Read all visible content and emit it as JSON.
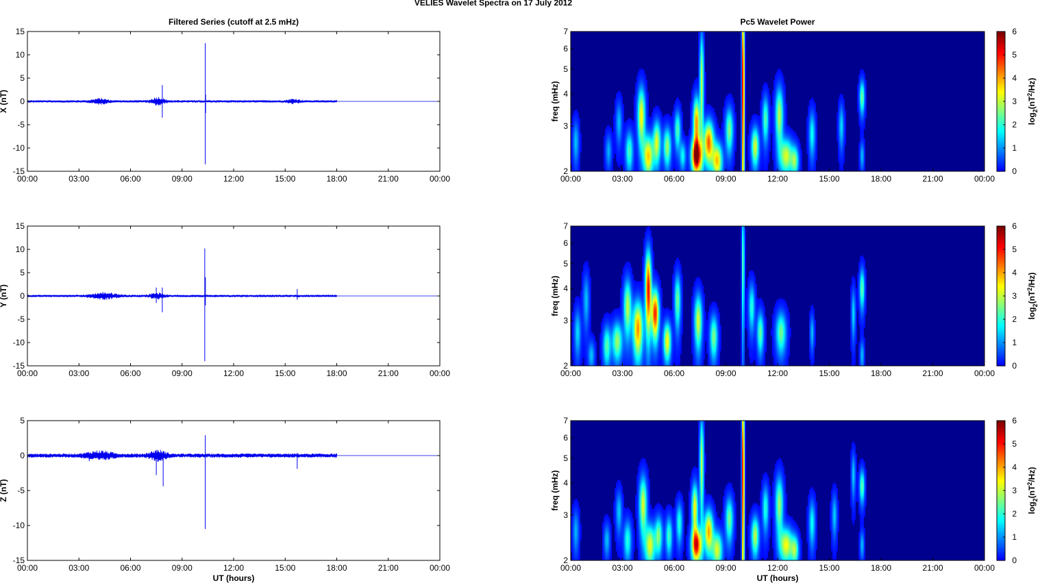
{
  "figure": {
    "title": "VELIES Wavelet Spectra on 17 July      2012"
  },
  "chart_data": [
    {
      "type": "line",
      "panel": "x-series",
      "title": "Filtered Series (cutoff at 2.5 mHz)",
      "xlabel": "",
      "ylabel": "X (nT)",
      "xlim": [
        0,
        24
      ],
      "ylim": [
        -15,
        15
      ],
      "xtick_labels": [
        "00:00",
        "03:00",
        "06:00",
        "09:00",
        "12:00",
        "15:00",
        "18:00",
        "21:00",
        "00:00"
      ],
      "yticks": [
        -15,
        -10,
        -5,
        0,
        5,
        10,
        15
      ],
      "line_color": "#0000ee",
      "data_end_hour": 18.0,
      "noise_amplitude": 0.25,
      "bursts": [
        {
          "t": 4.2,
          "amp": 0.5,
          "w": 0.5
        },
        {
          "t": 7.6,
          "amp": 0.8,
          "w": 0.4
        },
        {
          "t": 15.5,
          "amp": 0.4,
          "w": 0.4
        }
      ],
      "spikes": [
        {
          "t": 7.85,
          "min": -3.5,
          "max": 3.5
        },
        {
          "t": 10.35,
          "min": -13.5,
          "max": 12.5
        },
        {
          "t": 10.37,
          "min": -2.5,
          "max": 1.5
        }
      ]
    },
    {
      "type": "line",
      "panel": "y-series",
      "title": "",
      "xlabel": "",
      "ylabel": "Y (nT)",
      "xlim": [
        0,
        24
      ],
      "ylim": [
        -15,
        15
      ],
      "xtick_labels": [
        "00:00",
        "03:00",
        "06:00",
        "09:00",
        "12:00",
        "15:00",
        "18:00",
        "21:00",
        "00:00"
      ],
      "yticks": [
        -15,
        -10,
        -5,
        0,
        5,
        10,
        15
      ],
      "line_color": "#0000ee",
      "data_end_hour": 18.0,
      "noise_amplitude": 0.25,
      "bursts": [
        {
          "t": 4.5,
          "amp": 0.6,
          "w": 0.8
        },
        {
          "t": 7.5,
          "amp": 0.6,
          "w": 0.4
        }
      ],
      "spikes": [
        {
          "t": 7.5,
          "min": -1.5,
          "max": 1.8
        },
        {
          "t": 7.85,
          "min": -3.5,
          "max": 1.8
        },
        {
          "t": 10.32,
          "min": -14,
          "max": 10.2
        },
        {
          "t": 10.36,
          "min": -2.0,
          "max": 4.0
        },
        {
          "t": 15.7,
          "min": -0.8,
          "max": 1.5
        }
      ]
    },
    {
      "type": "line",
      "panel": "z-series",
      "title": "",
      "xlabel": "UT (hours)",
      "ylabel": "Z (nT)",
      "xlim": [
        0,
        24
      ],
      "ylim": [
        -15,
        5
      ],
      "xtick_labels": [
        "00:00",
        "03:00",
        "06:00",
        "09:00",
        "12:00",
        "15:00",
        "18:00",
        "21:00",
        "00:00"
      ],
      "yticks": [
        -15,
        -10,
        -5,
        0,
        5
      ],
      "line_color": "#0000ee",
      "data_end_hour": 18.0,
      "noise_amplitude": 0.3,
      "bursts": [
        {
          "t": 4.2,
          "amp": 0.5,
          "w": 0.8
        },
        {
          "t": 7.6,
          "amp": 0.6,
          "w": 0.5
        }
      ],
      "spikes": [
        {
          "t": 3.6,
          "min": -0.8,
          "max": 0.3
        },
        {
          "t": 7.5,
          "min": -2.8,
          "max": 0.8
        },
        {
          "t": 7.9,
          "min": -4.4,
          "max": 0.6
        },
        {
          "t": 10.35,
          "min": -10.5,
          "max": 2.9
        },
        {
          "t": 15.7,
          "min": -1.9,
          "max": 0.4
        }
      ]
    },
    {
      "type": "heatmap",
      "panel": "x-wavelet",
      "title": "Pc5 Wavelet Power",
      "xlabel": "",
      "ylabel": "freq (mHz)",
      "colorbar_label": "log2(nT2/Hz)",
      "colorbar_ticks": [
        0,
        1,
        2,
        3,
        4,
        5,
        6
      ],
      "xlim": [
        0,
        24
      ],
      "ylim": [
        2,
        7
      ],
      "y_scale": "log",
      "yticks": [
        2,
        3,
        4,
        5,
        6,
        7
      ],
      "xtick_labels": [
        "00:00",
        "03:00",
        "06:00",
        "09:00",
        "12:00",
        "15:00",
        "18:00",
        "21:00",
        "00:00"
      ],
      "clim": [
        0,
        6
      ],
      "blobs": [
        {
          "t": 0.3,
          "f": 2.6,
          "p": 1.3,
          "wt": 0.12,
          "wf": 0.35
        },
        {
          "t": 2.2,
          "f": 2.4,
          "p": 1.2,
          "wt": 0.12,
          "wf": 0.25
        },
        {
          "t": 2.8,
          "f": 3.1,
          "p": 1.3,
          "wt": 0.12,
          "wf": 0.4
        },
        {
          "t": 3.4,
          "f": 2.4,
          "p": 2.2,
          "wt": 0.15,
          "wf": 0.3
        },
        {
          "t": 4.1,
          "f": 3.3,
          "p": 3.5,
          "wt": 0.15,
          "wf": 0.6
        },
        {
          "t": 4.5,
          "f": 2.3,
          "p": 3.8,
          "wt": 0.2,
          "wf": 0.3
        },
        {
          "t": 5.0,
          "f": 2.6,
          "p": 3.2,
          "wt": 0.15,
          "wf": 0.35
        },
        {
          "t": 5.6,
          "f": 2.5,
          "p": 2.8,
          "wt": 0.15,
          "wf": 0.3
        },
        {
          "t": 6.2,
          "f": 2.9,
          "p": 2.3,
          "wt": 0.12,
          "wf": 0.35
        },
        {
          "t": 6.5,
          "f": 2.3,
          "p": 1.8,
          "wt": 0.12,
          "wf": 0.2
        },
        {
          "t": 7.3,
          "f": 2.3,
          "p": 6.0,
          "wt": 0.2,
          "wf": 0.25
        },
        {
          "t": 7.3,
          "f": 3.1,
          "p": 4.2,
          "wt": 0.13,
          "wf": 0.5
        },
        {
          "t": 7.6,
          "f": 4.5,
          "p": 3.0,
          "wt": 0.08,
          "wf": 1.5
        },
        {
          "t": 8.0,
          "f": 2.6,
          "p": 4.5,
          "wt": 0.2,
          "wf": 0.35
        },
        {
          "t": 8.5,
          "f": 2.2,
          "p": 3.8,
          "wt": 0.2,
          "wf": 0.25
        },
        {
          "t": 9.2,
          "f": 2.9,
          "p": 2.6,
          "wt": 0.15,
          "wf": 0.4
        },
        {
          "t": 10.0,
          "f": 4.5,
          "p": 5.8,
          "wt": 0.05,
          "wf": 3.0
        },
        {
          "t": 10.7,
          "f": 2.5,
          "p": 3.2,
          "wt": 0.15,
          "wf": 0.3
        },
        {
          "t": 11.3,
          "f": 3.2,
          "p": 2.3,
          "wt": 0.12,
          "wf": 0.45
        },
        {
          "t": 12.1,
          "f": 3.3,
          "p": 3.0,
          "wt": 0.15,
          "wf": 0.6
        },
        {
          "t": 12.5,
          "f": 2.3,
          "p": 3.2,
          "wt": 0.25,
          "wf": 0.25
        },
        {
          "t": 13.0,
          "f": 2.2,
          "p": 2.5,
          "wt": 0.15,
          "wf": 0.2
        },
        {
          "t": 14.0,
          "f": 2.8,
          "p": 1.8,
          "wt": 0.12,
          "wf": 0.4
        },
        {
          "t": 15.7,
          "f": 3.0,
          "p": 1.5,
          "wt": 0.1,
          "wf": 0.4
        },
        {
          "t": 16.9,
          "f": 3.9,
          "p": 2.5,
          "wt": 0.1,
          "wf": 0.4
        },
        {
          "t": 16.9,
          "f": 2.3,
          "p": 1.3,
          "wt": 0.08,
          "wf": 0.2
        }
      ]
    },
    {
      "type": "heatmap",
      "panel": "y-wavelet",
      "title": "",
      "xlabel": "",
      "ylabel": "freq (mHz)",
      "colorbar_label": "log2(nT2/Hz)",
      "colorbar_ticks": [
        0,
        1,
        2,
        3,
        4,
        5,
        6
      ],
      "xlim": [
        0,
        24
      ],
      "ylim": [
        2,
        7
      ],
      "y_scale": "log",
      "yticks": [
        2,
        3,
        4,
        5,
        6,
        7
      ],
      "xtick_labels": [
        "00:00",
        "03:00",
        "06:00",
        "09:00",
        "12:00",
        "15:00",
        "18:00",
        "21:00",
        "00:00"
      ],
      "clim": [
        0,
        6
      ],
      "blobs": [
        {
          "t": 0.4,
          "f": 2.7,
          "p": 1.5,
          "wt": 0.13,
          "wf": 0.4
        },
        {
          "t": 0.9,
          "f": 3.6,
          "p": 1.3,
          "wt": 0.12,
          "wf": 0.6
        },
        {
          "t": 1.2,
          "f": 2.2,
          "p": 1.3,
          "wt": 0.13,
          "wf": 0.2
        },
        {
          "t": 2.1,
          "f": 2.4,
          "p": 2.3,
          "wt": 0.15,
          "wf": 0.3
        },
        {
          "t": 2.7,
          "f": 2.5,
          "p": 2.8,
          "wt": 0.2,
          "wf": 0.3
        },
        {
          "t": 3.3,
          "f": 3.4,
          "p": 3.0,
          "wt": 0.15,
          "wf": 0.6
        },
        {
          "t": 3.9,
          "f": 2.8,
          "p": 4.2,
          "wt": 0.2,
          "wf": 0.5
        },
        {
          "t": 4.5,
          "f": 4.0,
          "p": 5.2,
          "wt": 0.12,
          "wf": 1.0
        },
        {
          "t": 4.9,
          "f": 3.2,
          "p": 5.0,
          "wt": 0.15,
          "wf": 0.5
        },
        {
          "t": 5.6,
          "f": 2.5,
          "p": 3.5,
          "wt": 0.15,
          "wf": 0.3
        },
        {
          "t": 6.2,
          "f": 3.6,
          "p": 2.5,
          "wt": 0.12,
          "wf": 0.6
        },
        {
          "t": 7.4,
          "f": 3.0,
          "p": 3.2,
          "wt": 0.15,
          "wf": 0.5
        },
        {
          "t": 8.3,
          "f": 2.6,
          "p": 2.6,
          "wt": 0.15,
          "wf": 0.35
        },
        {
          "t": 10.0,
          "f": 5.0,
          "p": 2.5,
          "wt": 0.05,
          "wf": 2.0
        },
        {
          "t": 10.5,
          "f": 3.4,
          "p": 2.0,
          "wt": 0.12,
          "wf": 0.5
        },
        {
          "t": 11.0,
          "f": 2.7,
          "p": 2.4,
          "wt": 0.13,
          "wf": 0.35
        },
        {
          "t": 12.2,
          "f": 2.7,
          "p": 2.5,
          "wt": 0.2,
          "wf": 0.35
        },
        {
          "t": 14.0,
          "f": 2.7,
          "p": 1.3,
          "wt": 0.08,
          "wf": 0.3
        },
        {
          "t": 16.4,
          "f": 3.2,
          "p": 1.5,
          "wt": 0.08,
          "wf": 0.5
        },
        {
          "t": 16.9,
          "f": 4.0,
          "p": 2.4,
          "wt": 0.1,
          "wf": 0.5
        },
        {
          "t": 16.9,
          "f": 2.2,
          "p": 1.3,
          "wt": 0.08,
          "wf": 0.2
        }
      ]
    },
    {
      "type": "heatmap",
      "panel": "z-wavelet",
      "title": "",
      "xlabel": "UT (hours)",
      "ylabel": "freq (mHz)",
      "colorbar_label": "log2(nT2/Hz)",
      "colorbar_ticks": [
        0,
        1,
        2,
        3,
        4,
        5,
        6
      ],
      "xlim": [
        0,
        24
      ],
      "ylim": [
        2,
        7
      ],
      "y_scale": "log",
      "yticks": [
        2,
        3,
        4,
        5,
        6,
        7
      ],
      "xtick_labels": [
        "00:00",
        "03:00",
        "06:00",
        "09:00",
        "12:00",
        "15:00",
        "18:00",
        "21:00",
        "00:00"
      ],
      "clim": [
        0,
        6
      ],
      "blobs": [
        {
          "t": 0.3,
          "f": 2.6,
          "p": 1.2,
          "wt": 0.12,
          "wf": 0.35
        },
        {
          "t": 2.1,
          "f": 2.4,
          "p": 1.3,
          "wt": 0.12,
          "wf": 0.25
        },
        {
          "t": 2.8,
          "f": 3.1,
          "p": 1.4,
          "wt": 0.12,
          "wf": 0.4
        },
        {
          "t": 3.3,
          "f": 2.4,
          "p": 2.0,
          "wt": 0.15,
          "wf": 0.3
        },
        {
          "t": 4.2,
          "f": 3.3,
          "p": 3.2,
          "wt": 0.15,
          "wf": 0.6
        },
        {
          "t": 4.6,
          "f": 2.3,
          "p": 3.3,
          "wt": 0.2,
          "wf": 0.3
        },
        {
          "t": 5.1,
          "f": 2.5,
          "p": 2.6,
          "wt": 0.15,
          "wf": 0.3
        },
        {
          "t": 5.7,
          "f": 2.5,
          "p": 2.2,
          "wt": 0.13,
          "wf": 0.3
        },
        {
          "t": 6.3,
          "f": 2.8,
          "p": 2.0,
          "wt": 0.12,
          "wf": 0.35
        },
        {
          "t": 7.3,
          "f": 2.3,
          "p": 5.2,
          "wt": 0.2,
          "wf": 0.25
        },
        {
          "t": 7.2,
          "f": 3.2,
          "p": 3.5,
          "wt": 0.12,
          "wf": 0.5
        },
        {
          "t": 7.6,
          "f": 4.8,
          "p": 3.0,
          "wt": 0.08,
          "wf": 1.5
        },
        {
          "t": 8.0,
          "f": 2.6,
          "p": 4.0,
          "wt": 0.18,
          "wf": 0.35
        },
        {
          "t": 8.5,
          "f": 2.2,
          "p": 3.2,
          "wt": 0.2,
          "wf": 0.25
        },
        {
          "t": 9.2,
          "f": 2.9,
          "p": 2.5,
          "wt": 0.15,
          "wf": 0.4
        },
        {
          "t": 10.0,
          "f": 4.5,
          "p": 5.6,
          "wt": 0.05,
          "wf": 3.0
        },
        {
          "t": 10.7,
          "f": 2.5,
          "p": 3.0,
          "wt": 0.15,
          "wf": 0.3
        },
        {
          "t": 11.3,
          "f": 3.2,
          "p": 2.0,
          "wt": 0.12,
          "wf": 0.45
        },
        {
          "t": 12.1,
          "f": 3.3,
          "p": 2.8,
          "wt": 0.15,
          "wf": 0.6
        },
        {
          "t": 12.5,
          "f": 2.3,
          "p": 3.4,
          "wt": 0.25,
          "wf": 0.25
        },
        {
          "t": 13.0,
          "f": 2.2,
          "p": 2.6,
          "wt": 0.15,
          "wf": 0.2
        },
        {
          "t": 14.0,
          "f": 2.8,
          "p": 1.8,
          "wt": 0.12,
          "wf": 0.4
        },
        {
          "t": 15.3,
          "f": 3.0,
          "p": 1.4,
          "wt": 0.1,
          "wf": 0.4
        },
        {
          "t": 16.4,
          "f": 4.3,
          "p": 1.4,
          "wt": 0.08,
          "wf": 0.6
        },
        {
          "t": 16.9,
          "f": 3.9,
          "p": 2.4,
          "wt": 0.1,
          "wf": 0.4
        },
        {
          "t": 16.9,
          "f": 2.3,
          "p": 1.3,
          "wt": 0.08,
          "wf": 0.2
        }
      ]
    }
  ]
}
